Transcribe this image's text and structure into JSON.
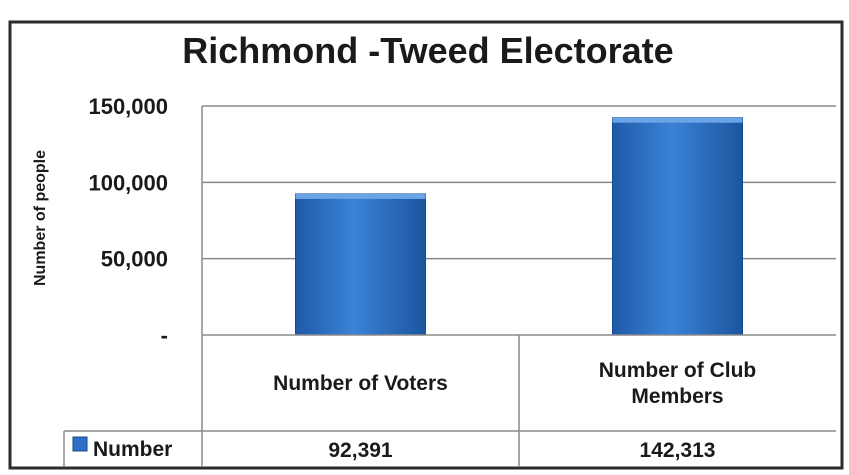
{
  "chart_data": {
    "type": "bar",
    "title": "Richmond -Tweed Electorate",
    "xlabel": "",
    "ylabel": "Number of people",
    "categories": [
      "Number of Voters",
      "Number of Club Members"
    ],
    "series": [
      {
        "name": "Number",
        "values": [
          92391,
          142313
        ],
        "value_labels": [
          "92,391",
          "142,313"
        ],
        "color": "#2e6fc4"
      }
    ],
    "ylim": [
      0,
      150000
    ],
    "yticks": [
      0,
      50000,
      100000,
      150000
    ],
    "ytick_labels": [
      "-",
      "50,000",
      "100,000",
      "150,000"
    ],
    "grid": true,
    "legend": "data table, left column",
    "data_table": true
  }
}
